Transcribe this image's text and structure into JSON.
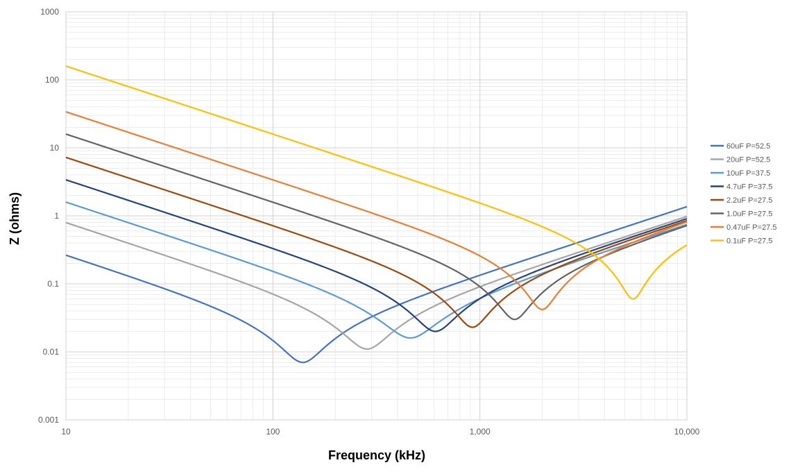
{
  "chart_data": {
    "type": "line",
    "title": "",
    "xlabel": "Frequency (kHz)",
    "ylabel": "Z (ohms)",
    "x_scale": "log",
    "y_scale": "log",
    "xlim": [
      10,
      10000
    ],
    "ylim": [
      0.001,
      1000
    ],
    "x_ticks": [
      10,
      100,
      1000,
      10000
    ],
    "x_tick_labels": [
      "10",
      "100",
      "1,000",
      "10,000"
    ],
    "y_ticks": [
      0.001,
      0.01,
      0.1,
      1,
      10,
      100,
      1000
    ],
    "y_tick_labels": [
      "0.001",
      "0.01",
      "0.1",
      "1",
      "10",
      "100",
      "1000"
    ],
    "grid": "major and minor",
    "legend_position": "right",
    "series": [
      {
        "name": "60uF  P=52.5",
        "color": "#4472C4",
        "capacitance_uF": 60,
        "esr_ohms": 0.007,
        "esl_nH": 21.7
      },
      {
        "name": "20uF  P=52.5",
        "color": "#A5A5A5",
        "capacitance_uF": 20,
        "esr_ohms": 0.011,
        "esl_nH": 15.6
      },
      {
        "name": "10uF  P=37.5",
        "color": "#5B9BD5",
        "capacitance_uF": 10,
        "esr_ohms": 0.016,
        "esl_nH": 11.9
      },
      {
        "name": "4.7uF  P=37.5",
        "color": "#264478",
        "capacitance_uF": 4.7,
        "esr_ohms": 0.02,
        "esl_nH": 14.5
      },
      {
        "name": "2.2uF  P=27.5",
        "color": "#9E480E",
        "capacitance_uF": 2.2,
        "esr_ohms": 0.023,
        "esl_nH": 13.6
      },
      {
        "name": "1.0uF  P=27.5",
        "color": "#636363",
        "capacitance_uF": 1.0,
        "esr_ohms": 0.03,
        "esl_nH": 11.7
      },
      {
        "name": "0.47uF  P=27.5",
        "color": "#ED7D31",
        "capacitance_uF": 0.47,
        "esr_ohms": 0.042,
        "esl_nH": 13.5
      },
      {
        "name": "0.1uF  P=27.5",
        "color": "#FFC000",
        "capacitance_uF": 0.1,
        "esr_ohms": 0.06,
        "esl_nH": 8.4
      }
    ]
  }
}
